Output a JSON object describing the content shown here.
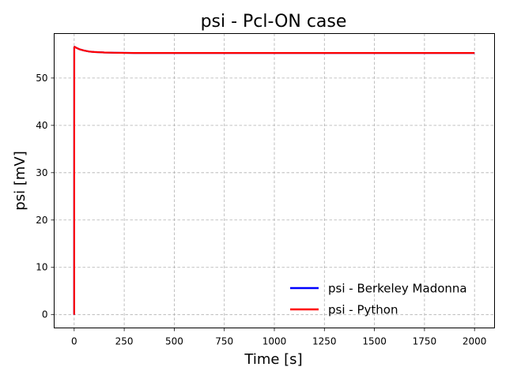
{
  "chart_data": {
    "type": "line",
    "title": "psi - Pcl-ON case",
    "xlabel": "Time [s]",
    "ylabel": "psi [mV]",
    "xlim": [
      -100,
      2100
    ],
    "ylim": [
      -2.8,
      59.4
    ],
    "xticks": [
      0,
      250,
      500,
      750,
      1000,
      1250,
      1500,
      1750,
      2000
    ],
    "yticks": [
      0,
      10,
      20,
      30,
      40,
      50
    ],
    "grid": true,
    "legend_position": "lower-right",
    "series": [
      {
        "name": "psi - Berkeley Madonna",
        "color": "#0000ff",
        "x": [
          0,
          0.5,
          2,
          10,
          25,
          50,
          75,
          100,
          150,
          200,
          300,
          500,
          1000,
          1500,
          2000
        ],
        "y": [
          0,
          56.5,
          56.6,
          56.4,
          56.1,
          55.8,
          55.6,
          55.5,
          55.4,
          55.35,
          55.3,
          55.3,
          55.3,
          55.3,
          55.3
        ]
      },
      {
        "name": "psi - Python",
        "color": "#ff0000",
        "x": [
          0,
          0.5,
          2,
          10,
          25,
          50,
          75,
          100,
          150,
          200,
          300,
          500,
          1000,
          1500,
          2000
        ],
        "y": [
          0,
          56.5,
          56.6,
          56.4,
          56.1,
          55.8,
          55.6,
          55.5,
          55.4,
          55.35,
          55.3,
          55.3,
          55.3,
          55.3,
          55.3
        ]
      }
    ]
  }
}
